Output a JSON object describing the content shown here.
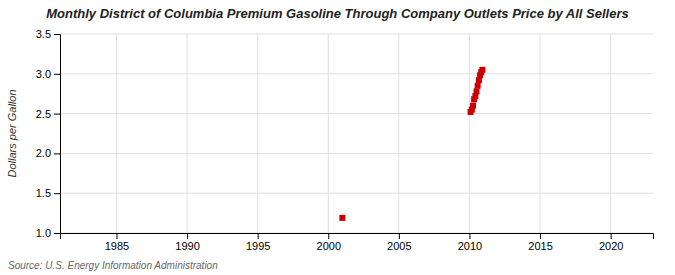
{
  "chart_data": {
    "type": "scatter",
    "title": "Monthly District of Columbia Premium Gasoline Through Company Outlets Price by All Sellers",
    "ylabel": "Dollars per Gallon",
    "annotations": [
      "Source: U.S. Energy Information Administration"
    ],
    "x": [
      2001.0,
      2010.08,
      2010.17,
      2010.25,
      2010.33,
      2010.42,
      2010.5,
      2010.58,
      2010.67,
      2010.75,
      2010.83,
      2010.92
    ],
    "values": [
      1.19,
      2.52,
      2.55,
      2.6,
      2.68,
      2.72,
      2.78,
      2.85,
      2.92,
      2.98,
      3.02,
      3.05
    ],
    "color": "#cc0000",
    "marker": "square",
    "xlim": [
      1981,
      2023
    ],
    "ylim": [
      1.0,
      3.5
    ],
    "xticks": [
      1985,
      1990,
      1995,
      2000,
      2005,
      2010,
      2015,
      2020
    ],
    "yticks": [
      {
        "value": 1.0,
        "label": "1.0"
      },
      1.5,
      {
        "value": 2.0,
        "label": "2.0"
      },
      2.5,
      {
        "value": 3.0,
        "label": "3.0"
      },
      3.5
    ],
    "grid": true
  }
}
